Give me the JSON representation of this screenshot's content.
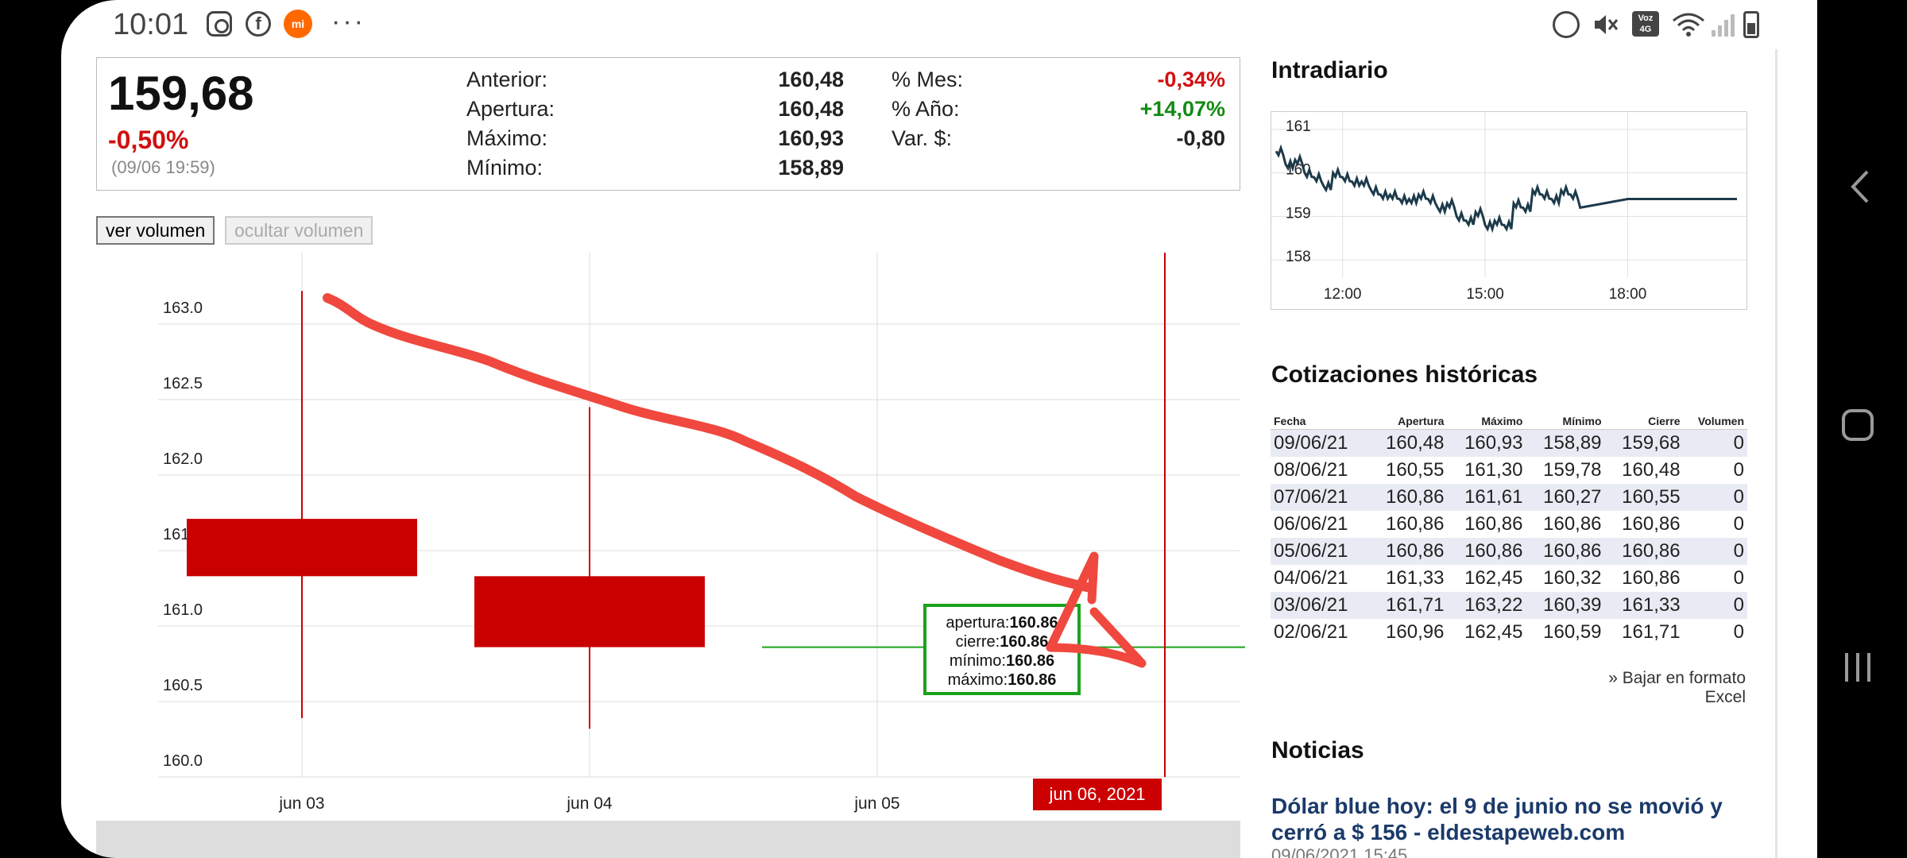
{
  "status_bar": {
    "time": "10:01",
    "fb_glyph": "f",
    "mi_glyph": "mi",
    "overflow": "···",
    "volte": "Voz 4G",
    "left_icons": [
      "instagram-icon",
      "facebook-icon",
      "mi-icon"
    ],
    "right_icons": [
      "alarm-icon",
      "mute-icon",
      "volte-icon",
      "wifi-icon",
      "signal-icon",
      "battery-icon"
    ]
  },
  "quote": {
    "price": "159,68",
    "change": "-0,50%",
    "datetime": "(09/06 19:59)",
    "stats_left": [
      {
        "label": "Anterior:",
        "value": "160,48"
      },
      {
        "label": "Apertura:",
        "value": "160,48"
      },
      {
        "label": "Máximo:",
        "value": "160,93"
      },
      {
        "label": "Mínimo:",
        "value": "158,89"
      }
    ],
    "stats_right": [
      {
        "label": "% Mes:",
        "value": "-0,34%",
        "tone": "neg"
      },
      {
        "label": "% Año:",
        "value": "+14,07%",
        "tone": "pos"
      },
      {
        "label": "Var. $:",
        "value": "-0,80",
        "tone": ""
      }
    ]
  },
  "volume_buttons": {
    "show": "ver volumen",
    "hide": "ocultar volumen"
  },
  "chart_data": {
    "type": "candlestick",
    "title": "",
    "xlabel": "",
    "ylabel": "",
    "ylim": [
      160.0,
      163.3
    ],
    "yticks": [
      "160.0",
      "160.5",
      "161.0",
      "161.5",
      "162.0",
      "162.5",
      "163.0"
    ],
    "categories": [
      "jun 03",
      "jun 04",
      "jun 05",
      "jun 06, 2021"
    ],
    "candles": [
      {
        "date": "jun 03",
        "open": 161.71,
        "high": 163.22,
        "low": 160.39,
        "close": 161.33
      },
      {
        "date": "jun 04",
        "open": 161.33,
        "high": 162.45,
        "low": 160.32,
        "close": 160.86
      },
      {
        "date": "jun 05",
        "open": 160.86,
        "high": 160.86,
        "low": 160.86,
        "close": 160.86
      },
      {
        "date": "jun 06",
        "open": 160.86,
        "high": 160.86,
        "low": 160.86,
        "close": 160.86
      }
    ],
    "candle_color": "#c90000",
    "flat_color": "#1aa31a",
    "grid": true,
    "tooltip": {
      "rows": [
        {
          "label": "apertura:",
          "value": "160.86"
        },
        {
          "label": "cierre:",
          "value": "160.86"
        },
        {
          "label": "mínimo:",
          "value": "160.86"
        },
        {
          "label": "máximo:",
          "value": "160.86"
        }
      ]
    },
    "crosshair_label": "jun 06, 2021"
  },
  "intraday": {
    "title": "Intradiario",
    "chart_data": {
      "type": "line",
      "yticks": [
        "158",
        "159",
        "160",
        "161"
      ],
      "ylim": [
        157.6,
        161.4
      ],
      "xticks": [
        "12:00",
        "15:00",
        "18:00"
      ],
      "xlim": [
        10.5,
        20.5
      ],
      "x": [
        10.6,
        10.8,
        11.0,
        11.2,
        11.4,
        11.6,
        11.8,
        12.0,
        12.2,
        12.4,
        12.6,
        12.8,
        13.0,
        13.2,
        13.4,
        13.6,
        13.8,
        14.0,
        14.2,
        14.4,
        14.6,
        14.8,
        15.0,
        15.2,
        15.4,
        15.6,
        15.8,
        16.0,
        16.2,
        16.4,
        16.6,
        16.8,
        17.0,
        18.0,
        19.0,
        20.3
      ],
      "values": [
        160.5,
        160.2,
        160.3,
        160.0,
        159.9,
        159.7,
        160.0,
        159.9,
        159.8,
        159.8,
        159.6,
        159.5,
        159.5,
        159.4,
        159.4,
        159.5,
        159.4,
        159.2,
        159.3,
        159.0,
        158.9,
        159.1,
        158.8,
        158.9,
        158.8,
        159.3,
        159.2,
        159.6,
        159.5,
        159.4,
        159.6,
        159.5,
        159.2,
        159.4,
        159.4,
        159.4
      ],
      "color": "#1c3a4a"
    }
  },
  "historical": {
    "title": "Cotizaciones históricas",
    "columns": [
      "Fecha",
      "Apertura",
      "Máximo",
      "Mínimo",
      "Cierre",
      "Volumen"
    ],
    "rows": [
      [
        "09/06/21",
        "160,48",
        "160,93",
        "158,89",
        "159,68",
        "0"
      ],
      [
        "08/06/21",
        "160,55",
        "161,30",
        "159,78",
        "160,48",
        "0"
      ],
      [
        "07/06/21",
        "160,86",
        "161,61",
        "160,27",
        "160,55",
        "0"
      ],
      [
        "06/06/21",
        "160,86",
        "160,86",
        "160,86",
        "160,86",
        "0"
      ],
      [
        "05/06/21",
        "160,86",
        "160,86",
        "160,86",
        "160,86",
        "0"
      ],
      [
        "04/06/21",
        "161,33",
        "162,45",
        "160,32",
        "160,86",
        "0"
      ],
      [
        "03/06/21",
        "161,71",
        "163,22",
        "160,39",
        "161,33",
        "0"
      ],
      [
        "02/06/21",
        "160,96",
        "162,45",
        "160,59",
        "161,71",
        "0"
      ]
    ],
    "excel_link": "» Bajar en formato Excel"
  },
  "news": {
    "title": "Noticias",
    "headline": "Dólar blue hoy: el 9 de junio no se movió y cerró a $ 156 - eldestapeweb.com",
    "date": "09/06/2021 15:45"
  },
  "annotation": {
    "color": "#f0483e"
  },
  "nav_bar": {
    "buttons": [
      "back-icon",
      "home-icon",
      "recent-apps-icon"
    ]
  }
}
